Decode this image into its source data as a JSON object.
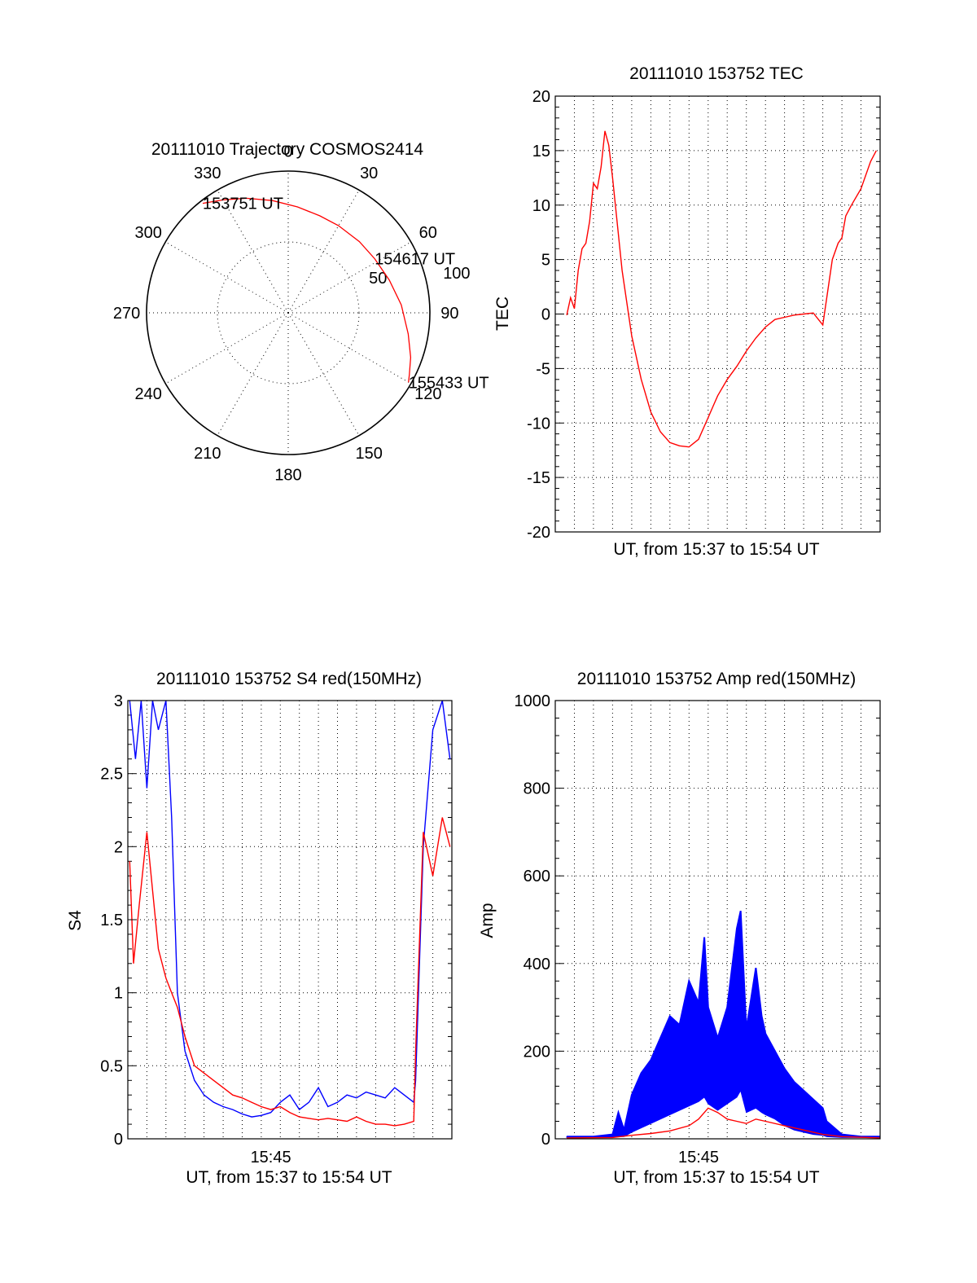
{
  "chart_data": [
    {
      "type": "polar",
      "title": "20111010 Trajectory COSMOS2414",
      "angle_labels": [
        "0",
        "30",
        "60",
        "90",
        "120",
        "150",
        "180",
        "210",
        "240",
        "270",
        "300",
        "330"
      ],
      "radius_labels": [
        "50",
        "100"
      ],
      "rlim": [
        0,
        100
      ],
      "angle_zero": "top",
      "direction": "clockwise",
      "grid": true,
      "series": [
        {
          "color": "#ff0000",
          "points": [
            {
              "az": 322,
              "zen": 98
            },
            {
              "az": 330,
              "zen": 92
            },
            {
              "az": 340,
              "zen": 86
            },
            {
              "az": 352,
              "zen": 80
            },
            {
              "az": 5,
              "zen": 75
            },
            {
              "az": 18,
              "zen": 72
            },
            {
              "az": 30,
              "zen": 71
            },
            {
              "az": 45,
              "zen": 71
            },
            {
              "az": 58,
              "zen": 72
            },
            {
              "az": 72,
              "zen": 75
            },
            {
              "az": 86,
              "zen": 80
            },
            {
              "az": 100,
              "zen": 86
            },
            {
              "az": 110,
              "zen": 92
            },
            {
              "az": 117,
              "zen": 96
            },
            {
              "az": 120,
              "zen": 98
            }
          ]
        }
      ],
      "annotations": [
        {
          "text": "153751 UT",
          "az": 322,
          "zen": 98
        },
        {
          "text": "154617 UT",
          "az": 58,
          "zen": 72
        },
        {
          "text": "155433 UT",
          "az": 120,
          "zen": 98
        }
      ]
    },
    {
      "type": "line",
      "title": "20111010 153752 TEC",
      "xlabel": "UT, from 15:37 to 15:54 UT",
      "ylabel": "TEC",
      "xlim": [
        0,
        17
      ],
      "ylim": [
        -20,
        20
      ],
      "yticks": [
        -20,
        -15,
        -10,
        -5,
        0,
        5,
        10,
        15,
        20
      ],
      "grid": true,
      "series": [
        {
          "color": "#ff0000",
          "x": [
            0.6,
            0.8,
            1.0,
            1.2,
            1.4,
            1.6,
            1.8,
            2.0,
            2.2,
            2.4,
            2.6,
            2.8,
            3.0,
            3.5,
            4.0,
            4.5,
            5.0,
            5.5,
            6.0,
            6.5,
            7.0,
            7.5,
            8.0,
            8.3,
            8.5,
            9.0,
            9.5,
            10.0,
            10.5,
            11.0,
            11.5,
            12.0,
            12.5,
            13.0,
            13.5,
            14.0,
            14.5,
            14.8,
            15.0,
            15.1,
            15.2,
            15.5,
            16.0,
            16.5,
            16.8
          ],
          "y": [
            -0.1,
            1.5,
            0.5,
            4.0,
            6.0,
            6.5,
            8.5,
            12.0,
            11.5,
            13.5,
            16.8,
            15.5,
            12.5,
            4.0,
            -2.0,
            -6.0,
            -9.0,
            -10.8,
            -11.8,
            -12.1,
            -12.2,
            -11.5,
            -9.5,
            -8.3,
            -7.5,
            -6.0,
            -4.8,
            -3.4,
            -2.2,
            -1.2,
            -0.5,
            -0.3,
            -0.1,
            0.0,
            0.1,
            -1.0,
            5.0,
            6.5,
            7.0,
            8.0,
            9.0,
            10.0,
            11.5,
            14.0,
            15.0
          ]
        }
      ]
    },
    {
      "type": "line",
      "title": "20111010 153752 S4 red(150MHz)",
      "xlabel": "UT, from 15:37 to 15:54 UT",
      "ylabel": "S4",
      "xlim": [
        0,
        17
      ],
      "ylim": [
        0,
        3
      ],
      "yticks": [
        0,
        0.5,
        1,
        1.5,
        2,
        2.5,
        3
      ],
      "xticks": [
        {
          "value": 7.5,
          "label": "15:45"
        }
      ],
      "grid": true,
      "series": [
        {
          "color": "#0000ff",
          "x": [
            0.1,
            0.4,
            0.7,
            1.0,
            1.3,
            1.6,
            2.0,
            2.3,
            2.6,
            3.0,
            3.5,
            4.0,
            4.5,
            5.0,
            5.5,
            6.0,
            6.5,
            7.0,
            7.5,
            8.0,
            8.5,
            9.0,
            9.5,
            10.0,
            10.5,
            11.0,
            11.5,
            12.0,
            12.5,
            13.0,
            13.5,
            14.0,
            14.5,
            15.0,
            15.1,
            15.5,
            16.0,
            16.5,
            16.9
          ],
          "y": [
            3.0,
            2.6,
            3.0,
            2.4,
            3.0,
            2.8,
            3.0,
            2.2,
            1.0,
            0.6,
            0.4,
            0.3,
            0.25,
            0.22,
            0.2,
            0.17,
            0.15,
            0.16,
            0.18,
            0.25,
            0.3,
            0.2,
            0.25,
            0.35,
            0.22,
            0.25,
            0.3,
            0.28,
            0.32,
            0.3,
            0.28,
            0.35,
            0.3,
            0.25,
            0.4,
            2.0,
            2.8,
            3.0,
            2.6
          ]
        },
        {
          "color": "#ff0000",
          "x": [
            0.1,
            0.3,
            0.6,
            1.0,
            1.3,
            1.6,
            2.0,
            2.3,
            2.6,
            3.0,
            3.5,
            4.0,
            4.5,
            5.0,
            5.5,
            6.0,
            6.5,
            7.0,
            7.5,
            8.0,
            8.5,
            9.0,
            9.5,
            10.0,
            10.5,
            11.0,
            11.5,
            12.0,
            12.5,
            13.0,
            13.5,
            14.0,
            14.5,
            15.0,
            15.1,
            15.5,
            16.0,
            16.5,
            16.9
          ],
          "y": [
            1.9,
            1.2,
            1.6,
            2.1,
            1.7,
            1.3,
            1.1,
            1.0,
            0.9,
            0.7,
            0.5,
            0.45,
            0.4,
            0.35,
            0.3,
            0.28,
            0.25,
            0.22,
            0.2,
            0.22,
            0.18,
            0.15,
            0.14,
            0.13,
            0.14,
            0.13,
            0.12,
            0.15,
            0.12,
            0.1,
            0.1,
            0.09,
            0.1,
            0.12,
            0.6,
            2.1,
            1.8,
            2.2,
            2.0
          ]
        }
      ]
    },
    {
      "type": "line",
      "title": "20111010 153752 Amp red(150MHz)",
      "xlabel": "UT, from 15:37 to 15:54 UT",
      "ylabel": "Amp",
      "xlim": [
        0,
        17
      ],
      "ylim": [
        0,
        1000
      ],
      "yticks": [
        0,
        200,
        400,
        600,
        800,
        1000
      ],
      "xticks": [
        {
          "value": 7.5,
          "label": "15:45"
        }
      ],
      "grid": true,
      "series": [
        {
          "color": "#0000ff",
          "x": [
            0.6,
            2.0,
            3.0,
            3.3,
            3.6,
            4.0,
            4.5,
            5.0,
            5.5,
            6.0,
            6.5,
            7.0,
            7.5,
            7.8,
            8.0,
            8.5,
            9.0,
            9.5,
            9.7,
            10.0,
            10.5,
            10.8,
            11.0,
            11.5,
            12.0,
            12.5,
            13.0,
            13.5,
            14.0,
            14.2,
            15.0,
            16.0,
            17.0
          ],
          "y": [
            5,
            5,
            10,
            60,
            20,
            100,
            150,
            180,
            230,
            280,
            260,
            360,
            310,
            460,
            300,
            230,
            300,
            480,
            520,
            250,
            390,
            280,
            240,
            200,
            160,
            130,
            110,
            90,
            70,
            40,
            10,
            5,
            5
          ],
          "y_min": [
            3,
            3,
            3,
            5,
            5,
            15,
            25,
            35,
            45,
            55,
            65,
            75,
            85,
            95,
            80,
            65,
            80,
            95,
            110,
            60,
            70,
            60,
            55,
            45,
            30,
            20,
            15,
            10,
            8,
            5,
            3,
            3,
            3
          ]
        },
        {
          "color": "#ff0000",
          "x": [
            0.6,
            3.0,
            4.0,
            5.0,
            6.0,
            7.0,
            7.5,
            8.0,
            8.5,
            9.0,
            9.5,
            10.0,
            10.5,
            11.0,
            12.0,
            13.0,
            14.0,
            15.0,
            17.0
          ],
          "y": [
            2,
            3,
            8,
            12,
            18,
            30,
            45,
            70,
            60,
            45,
            40,
            35,
            45,
            40,
            30,
            20,
            10,
            5,
            2
          ]
        }
      ]
    }
  ]
}
